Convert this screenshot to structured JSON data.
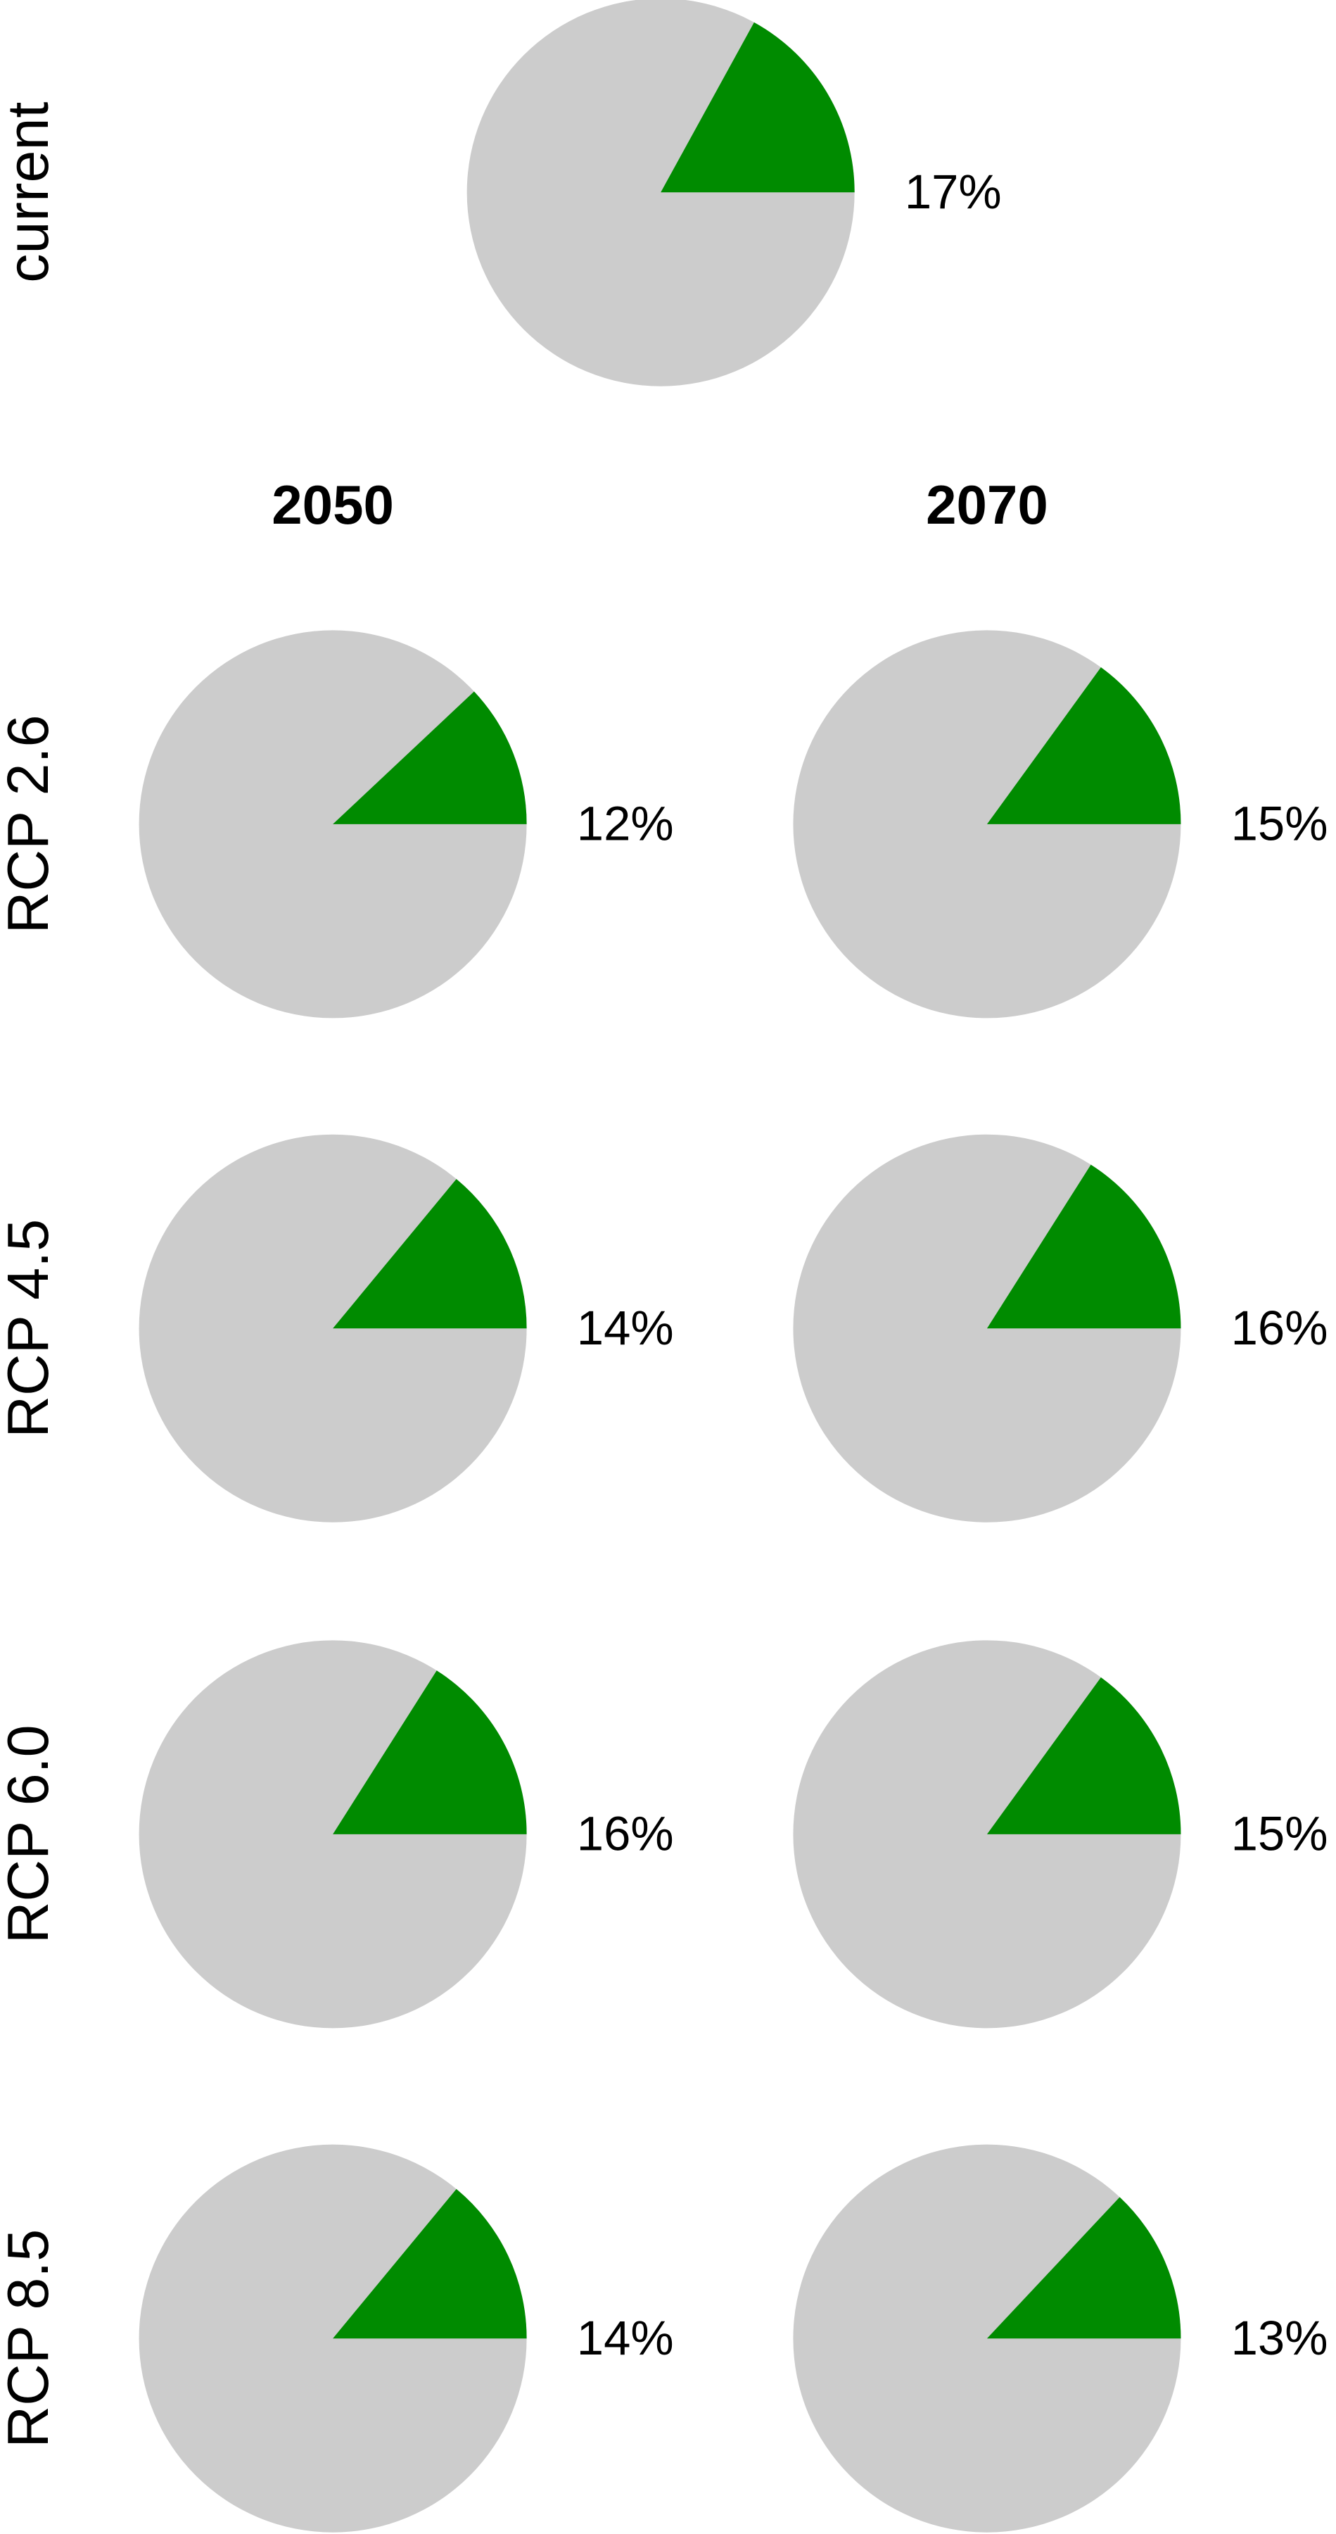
{
  "row_labels": [
    "current",
    "RCP 2.6",
    "RCP 4.5",
    "RCP 6.0",
    "RCP 8.5"
  ],
  "column_labels": [
    "2050",
    "2070"
  ],
  "chart_data": [
    {
      "type": "pie",
      "values": [
        17
      ],
      "value_labels": [
        "17%"
      ],
      "color": "#008b00"
    },
    {
      "type": "pie",
      "values": [
        12
      ],
      "value_labels": [
        "12%"
      ],
      "color": "#008b00"
    },
    {
      "type": "pie",
      "values": [
        15
      ],
      "value_labels": [
        "15%"
      ],
      "color": "#008b00"
    },
    {
      "type": "pie",
      "values": [
        14
      ],
      "value_labels": [
        "14%"
      ],
      "color": "#008b00"
    },
    {
      "type": "pie",
      "values": [
        16
      ],
      "value_labels": [
        "16%"
      ],
      "color": "#008b00"
    },
    {
      "type": "pie",
      "values": [
        16
      ],
      "value_labels": [
        "16%"
      ],
      "color": "#008b00"
    },
    {
      "type": "pie",
      "values": [
        15
      ],
      "value_labels": [
        "15%"
      ],
      "color": "#008b00"
    },
    {
      "type": "pie",
      "values": [
        14
      ],
      "value_labels": [
        "14%"
      ],
      "color": "#008b00"
    },
    {
      "type": "pie",
      "values": [
        13
      ],
      "value_labels": [
        "13%"
      ],
      "color": "#008b00"
    }
  ]
}
